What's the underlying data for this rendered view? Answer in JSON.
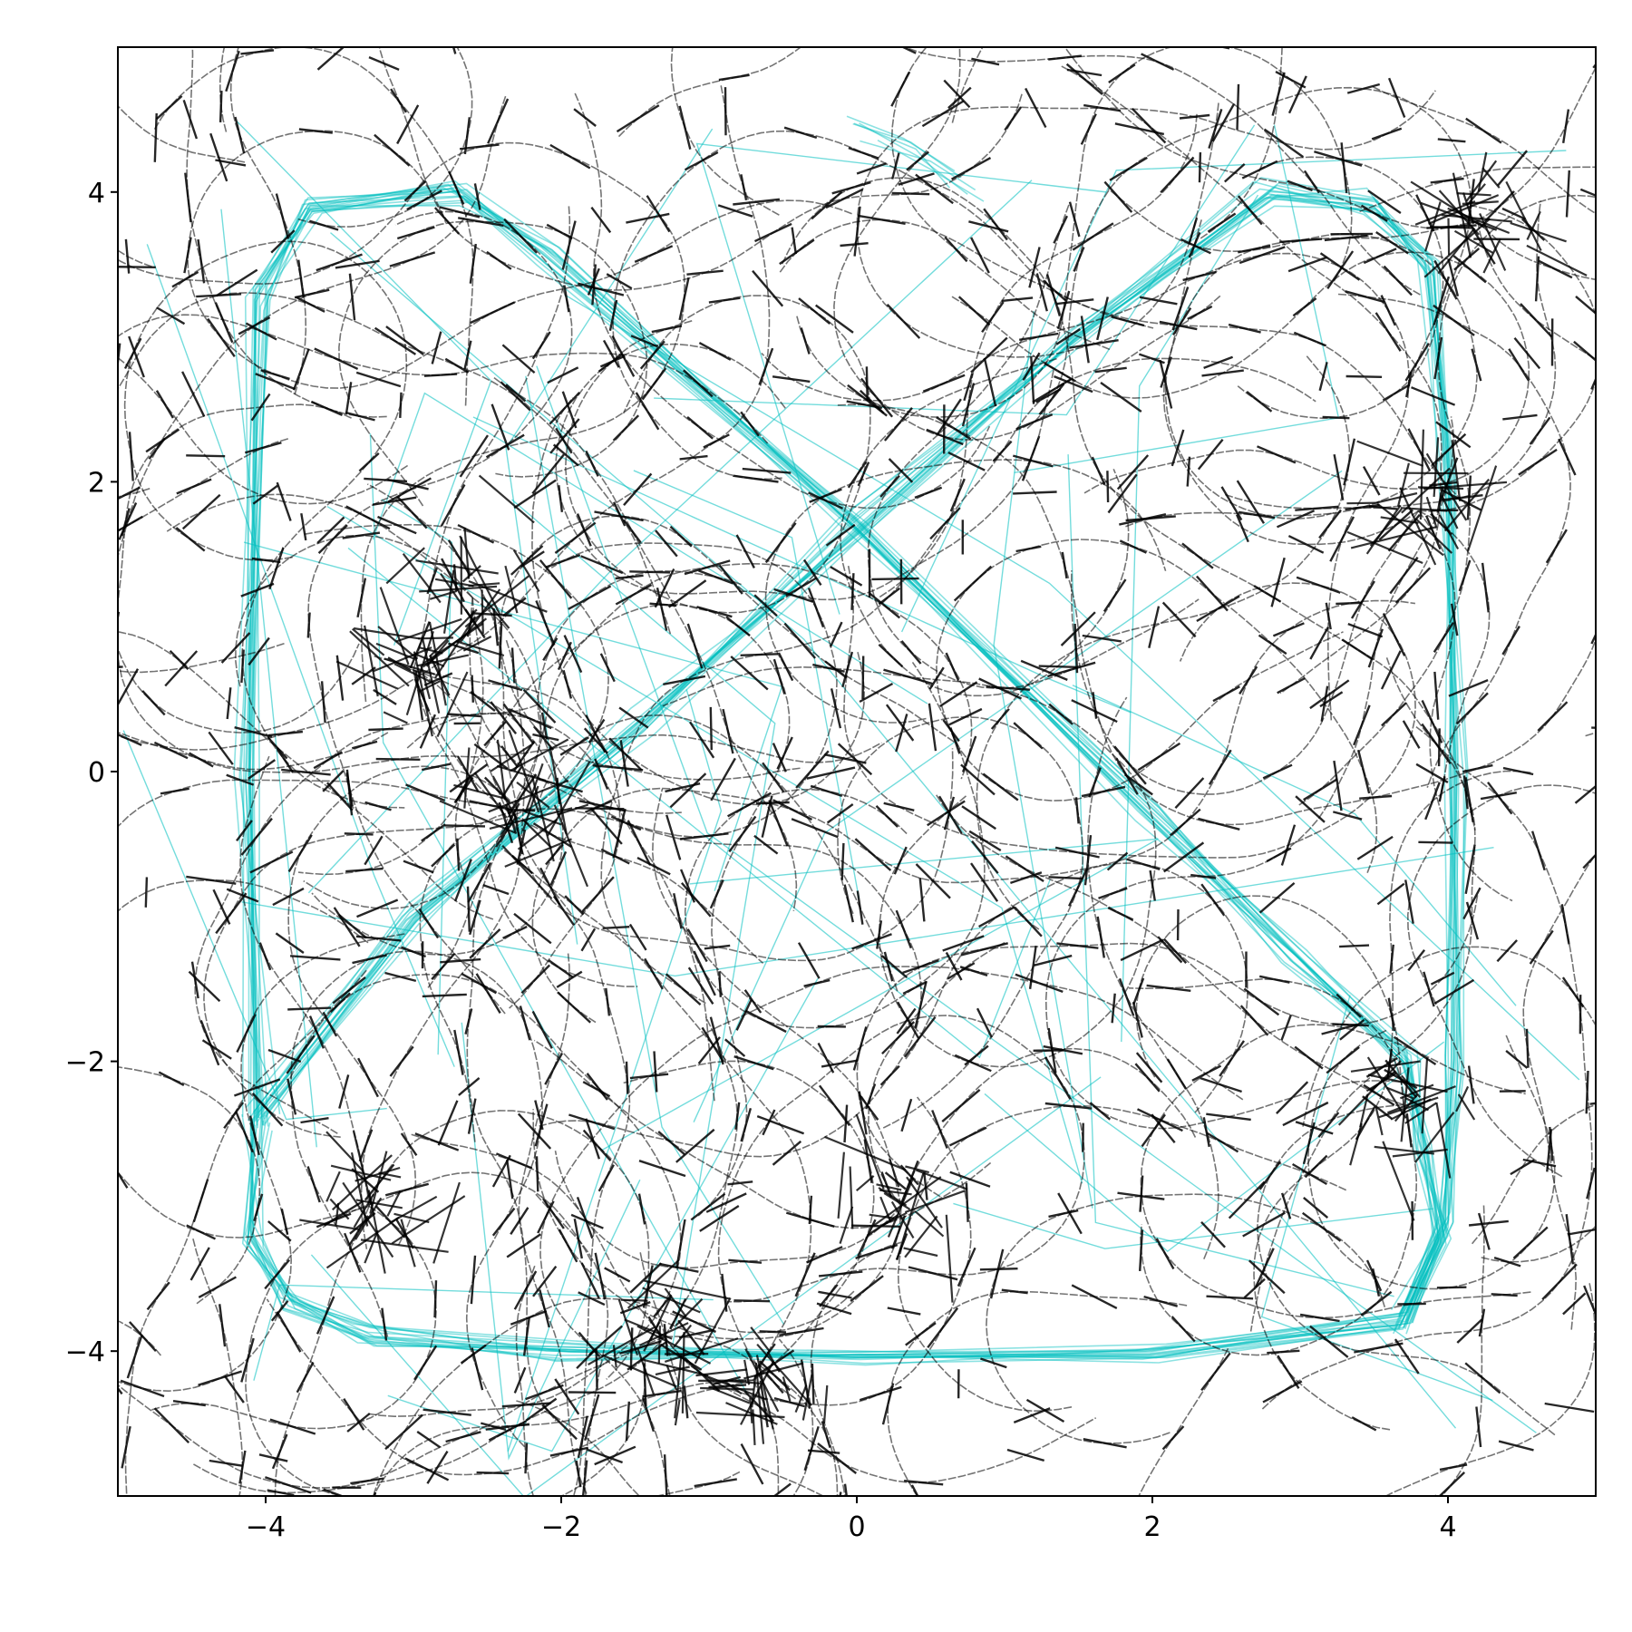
{
  "chart_data": {
    "type": "line",
    "title": "",
    "xlabel": "",
    "ylabel": "",
    "xlim": [
      -5,
      5
    ],
    "ylim": [
      -5,
      5
    ],
    "xticks": [
      -4,
      -2,
      0,
      2,
      4
    ],
    "yticks": [
      -4,
      -2,
      0,
      2,
      4
    ],
    "xtick_labels": [
      "−4",
      "−2",
      "0",
      "2",
      "4"
    ],
    "ytick_labels": [
      "−4",
      "−2",
      "0",
      "2",
      "4"
    ],
    "grid": false,
    "legend": "none",
    "series": [
      {
        "color": "#00BFBF",
        "style": "dense cyan trajectories tracing a rounded square loop with two crossing diagonals",
        "values": [
          [
            [
              -4.05,
              -2.4
            ],
            [
              -4.1,
              0.0
            ],
            [
              -4.05,
              3.3
            ],
            [
              -3.7,
              3.9
            ],
            [
              -2.7,
              4.0
            ],
            [
              -2.1,
              3.6
            ],
            [
              0.0,
              1.7
            ],
            [
              2.0,
              -0.3
            ],
            [
              3.0,
              -1.3
            ],
            [
              3.7,
              -2.0
            ],
            [
              3.85,
              -2.6
            ],
            [
              3.95,
              -3.2
            ],
            [
              3.7,
              -3.8
            ],
            [
              2.0,
              -4.0
            ],
            [
              0.0,
              -4.05
            ],
            [
              -2.0,
              -4.0
            ],
            [
              -3.3,
              -3.9
            ],
            [
              -3.85,
              -3.65
            ],
            [
              -4.1,
              -3.2
            ],
            [
              -4.05,
              -2.4
            ]
          ],
          [
            [
              -4.05,
              -2.4
            ],
            [
              -3.0,
              -1.0
            ],
            [
              -1.5,
              0.3
            ],
            [
              0.0,
              1.7
            ],
            [
              1.5,
              3.0
            ],
            [
              2.8,
              4.0
            ],
            [
              3.5,
              3.9
            ],
            [
              3.9,
              3.5
            ],
            [
              4.0,
              2.0
            ],
            [
              4.05,
              0.0
            ],
            [
              4.05,
              -2.0
            ],
            [
              4.0,
              -3.1
            ],
            [
              3.7,
              -3.8
            ]
          ],
          [
            [
              -0.1,
              4.55
            ],
            [
              0.3,
              4.35
            ],
            [
              0.65,
              4.1
            ]
          ]
        ]
      },
      {
        "color": "#000000",
        "style": "many semi-transparent black random-walk paths with short heading ticks, clustered around hubs",
        "hubs": [
          [
            -3.0,
            0.7
          ],
          [
            -2.6,
            1.2
          ],
          [
            -2.3,
            -0.25
          ],
          [
            -1.3,
            -3.9
          ],
          [
            -0.7,
            -4.2
          ],
          [
            3.7,
            -2.3
          ],
          [
            4.2,
            3.8
          ],
          [
            3.8,
            1.8
          ],
          [
            -3.3,
            -3.0
          ],
          [
            0.3,
            -3.0
          ]
        ]
      }
    ]
  }
}
